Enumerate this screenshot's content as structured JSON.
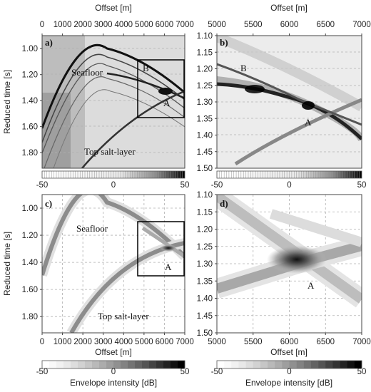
{
  "chart_data": [
    {
      "panel": "a)",
      "type": "heatmap",
      "xlabel": "Offset [m]",
      "ylabel": "Reduced time [s]",
      "xlim": [
        0,
        7000
      ],
      "ylim": [
        0.9,
        1.92
      ],
      "x_ticks": [
        "0",
        "1000",
        "2000",
        "3000",
        "4000",
        "5000",
        "6000",
        "7000"
      ],
      "y_ticks": [
        "1.00",
        "1.20",
        "1.40",
        "1.60",
        "1.80"
      ],
      "annotations": [
        "Seafloor",
        "B",
        "A",
        "Top salt-layer"
      ],
      "colorbar": {
        "ticks": [
          "-50",
          "0",
          "50"
        ],
        "range": [
          -50,
          50
        ],
        "style": "hatched"
      },
      "zoom_box": {
        "x": [
          4800,
          6900
        ],
        "y": [
          1.1,
          1.5
        ]
      },
      "events": [
        {
          "name": "Seafloor",
          "apex_offset": 2900,
          "apex_time": 1.0
        },
        {
          "name": "Top salt-layer",
          "start_offset": 2000,
          "start_time": 1.92,
          "end_offset": 7000,
          "end_time": 1.32
        }
      ]
    },
    {
      "panel": "b)",
      "type": "heatmap",
      "xlabel": "Offset [m]",
      "xlim": [
        5000,
        7000
      ],
      "ylim": [
        1.1,
        1.5
      ],
      "x_ticks": [
        "5000",
        "5500",
        "6000",
        "6500",
        "7000"
      ],
      "y_ticks": [
        "1.10",
        "1.15",
        "1.20",
        "1.25",
        "1.30",
        "1.35",
        "1.40",
        "1.45",
        "1.50"
      ],
      "annotations": [
        "B",
        "A"
      ],
      "colorbar": {
        "ticks": [
          "-50",
          "0",
          "50"
        ],
        "range": [
          -50,
          50
        ],
        "style": "hatched"
      }
    },
    {
      "panel": "c)",
      "type": "heatmap",
      "xlabel": "Offset [m]",
      "ylabel": "Reduced time [s]",
      "xlim": [
        0,
        7000
      ],
      "ylim": [
        0.9,
        1.92
      ],
      "x_ticks": [
        "0",
        "1000",
        "2000",
        "3000",
        "4000",
        "5000",
        "6000",
        "7000"
      ],
      "y_ticks": [
        "1.00",
        "1.20",
        "1.40",
        "1.60",
        "1.80"
      ],
      "annotations": [
        "Seafloor",
        "A",
        "Top salt-layer"
      ],
      "colorbar": {
        "label": "Envelope intensity [dB]",
        "ticks": [
          "-50",
          "0",
          "50"
        ],
        "range": [
          -50,
          50
        ],
        "style": "stepped"
      },
      "zoom_box": {
        "x": [
          4800,
          6900
        ],
        "y": [
          1.1,
          1.5
        ]
      },
      "focus_point": {
        "offset": 6250,
        "time": 1.29
      }
    },
    {
      "panel": "d)",
      "type": "heatmap",
      "xlabel": "Offset [m]",
      "xlim": [
        5000,
        7000
      ],
      "ylim": [
        1.1,
        1.5
      ],
      "x_ticks": [
        "5000",
        "5500",
        "6000",
        "6500",
        "7000"
      ],
      "y_ticks": [
        "1.10",
        "1.15",
        "1.20",
        "1.25",
        "1.30",
        "1.35",
        "1.40",
        "1.45",
        "1.50"
      ],
      "annotations": [
        "A"
      ],
      "colorbar": {
        "label": "Envelope intensity [dB]",
        "ticks": [
          "-50",
          "0",
          "50"
        ],
        "range": [
          -50,
          50
        ],
        "style": "stepped"
      },
      "focus_point": {
        "offset": 6280,
        "time": 1.29
      }
    }
  ]
}
